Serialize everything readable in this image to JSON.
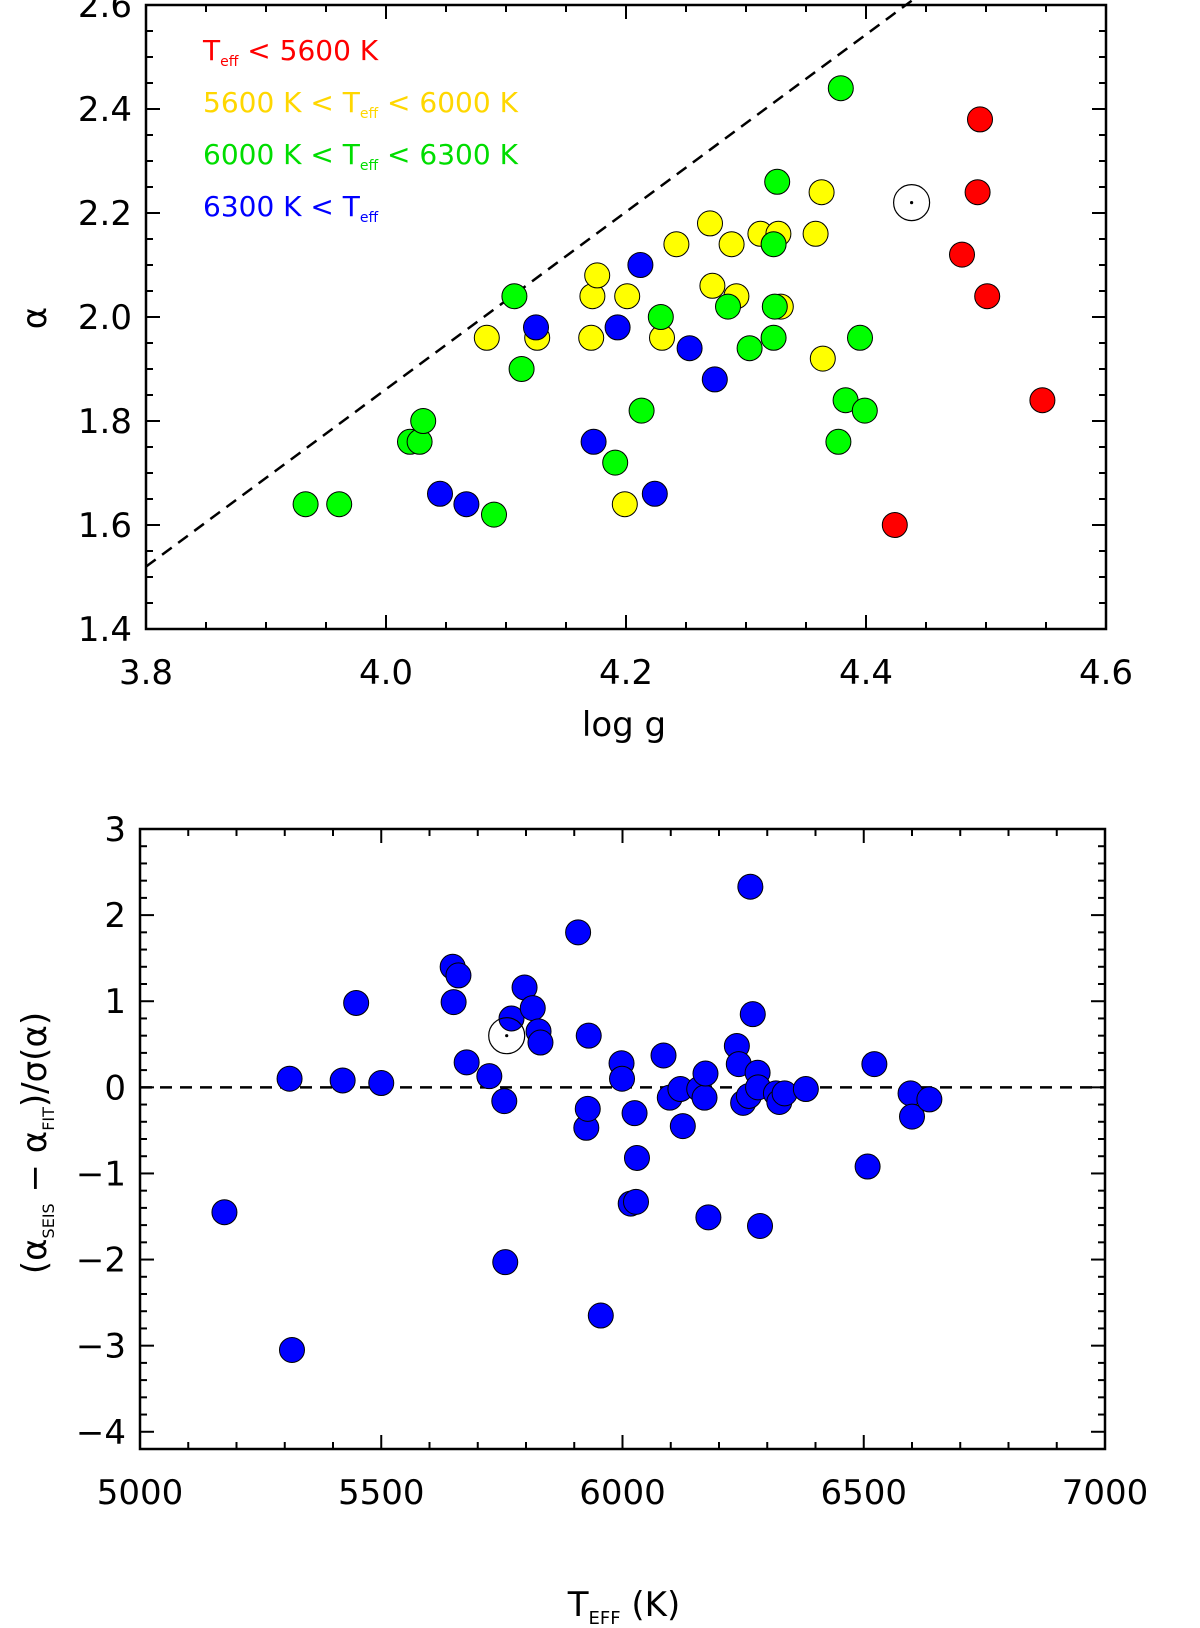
{
  "chart_data": [
    {
      "type": "scatter",
      "xlabel": "log g",
      "ylabel": "α",
      "xlim": [
        3.8,
        4.6
      ],
      "ylim": [
        1.4,
        2.6
      ],
      "xticks": [
        "3.8",
        "4.0",
        "4.2",
        "4.4",
        "4.6"
      ],
      "yticks": [
        "1.4",
        "1.6",
        "1.8",
        "2.0",
        "2.2",
        "2.4",
        "2.6"
      ],
      "legend_position": "top-left",
      "reference_line": {
        "style": "dashed",
        "points": [
          [
            3.8,
            1.52
          ],
          [
            4.445,
            2.62
          ]
        ]
      },
      "series": [
        {
          "name": "Teff < 5600 K",
          "legend": {
            "pre": "T",
            "sub": "eff",
            "post": " < 5600 K"
          },
          "color": "#ff0000",
          "points": [
            [
              4.424,
              1.6
            ],
            [
              4.48,
              2.12
            ],
            [
              4.493,
              2.24
            ],
            [
              4.495,
              2.38
            ],
            [
              4.501,
              2.04
            ],
            [
              4.547,
              1.84
            ]
          ]
        },
        {
          "name": "5600 K < Teff < 6000 K",
          "legend": {
            "pre": "5600 K < T",
            "sub": "eff",
            "post": " < 6000 K"
          },
          "color": "#ffff00",
          "points": [
            [
              4.084,
              1.96
            ],
            [
              4.126,
              1.96
            ],
            [
              4.171,
              1.96
            ],
            [
              4.172,
              2.04
            ],
            [
              4.176,
              2.08
            ],
            [
              4.199,
              1.64
            ],
            [
              4.201,
              2.04
            ],
            [
              4.23,
              1.96
            ],
            [
              4.242,
              2.14
            ],
            [
              4.27,
              2.18
            ],
            [
              4.272,
              2.06
            ],
            [
              4.288,
              2.14
            ],
            [
              4.292,
              2.04
            ],
            [
              4.312,
              2.16
            ],
            [
              4.327,
              2.16
            ],
            [
              4.329,
              2.02
            ],
            [
              4.358,
              2.16
            ],
            [
              4.363,
              2.24
            ],
            [
              4.364,
              1.92
            ]
          ]
        },
        {
          "name": "6000 K < Teff < 6300 K",
          "legend": {
            "pre": "6000 K < T",
            "sub": "eff",
            "post": " < 6300 K"
          },
          "color": "#00ff00",
          "points": [
            [
              3.933,
              1.64
            ],
            [
              3.961,
              1.64
            ],
            [
              4.02,
              1.76
            ],
            [
              4.028,
              1.76
            ],
            [
              4.031,
              1.8
            ],
            [
              4.09,
              1.62
            ],
            [
              4.107,
              2.04
            ],
            [
              4.113,
              1.9
            ],
            [
              4.191,
              1.72
            ],
            [
              4.213,
              1.82
            ],
            [
              4.229,
              2.0
            ],
            [
              4.285,
              2.02
            ],
            [
              4.303,
              1.94
            ],
            [
              4.323,
              1.96
            ],
            [
              4.323,
              2.14
            ],
            [
              4.324,
              2.02
            ],
            [
              4.326,
              2.26
            ],
            [
              4.377,
              1.76
            ],
            [
              4.379,
              2.44
            ],
            [
              4.383,
              1.84
            ],
            [
              4.395,
              1.96
            ],
            [
              4.399,
              1.82
            ]
          ]
        },
        {
          "name": "6300 K < Teff",
          "legend": {
            "pre": "6300 K < T",
            "sub": "eff",
            "post": ""
          },
          "color": "#0000ff",
          "points": [
            [
              4.045,
              1.66
            ],
            [
              4.067,
              1.64
            ],
            [
              4.125,
              1.98
            ],
            [
              4.173,
              1.76
            ],
            [
              4.193,
              1.98
            ],
            [
              4.212,
              2.1
            ],
            [
              4.224,
              1.66
            ],
            [
              4.253,
              1.94
            ],
            [
              4.274,
              1.88
            ]
          ]
        },
        {
          "name": "Sun",
          "color": "none",
          "open_symbol": true,
          "points": [
            [
              4.438,
              2.22
            ]
          ]
        }
      ]
    },
    {
      "type": "scatter",
      "xlabel": "TEFF (K)",
      "xlabel_parts": {
        "pre": "T",
        "sub": "EFF",
        "post": " (K)"
      },
      "ylabel": "(αSEIS − αFIT)/σ(α)",
      "ylabel_parts": {
        "a": "(α",
        "sub1": "SEIS",
        "b": " − α",
        "sub2": "FIT",
        "c": ")/σ(α)"
      },
      "xlim": [
        5000,
        7000
      ],
      "ylim": [
        -4.2,
        3.0
      ],
      "xticks": [
        "5000",
        "5500",
        "6000",
        "6500",
        "7000"
      ],
      "yticks": [
        "−4",
        "−3",
        "−2",
        "−1",
        "0",
        "1",
        "2",
        "3"
      ],
      "reference_line": {
        "style": "dashed",
        "y": 0
      },
      "series": [
        {
          "name": "stars",
          "color": "#0000ff",
          "points": [
            [
              5175,
              -1.45
            ],
            [
              5310,
              0.1
            ],
            [
              5315,
              -3.05
            ],
            [
              5420,
              0.08
            ],
            [
              5448,
              0.98
            ],
            [
              5500,
              0.05
            ],
            [
              5648,
              1.4
            ],
            [
              5650,
              0.99
            ],
            [
              5660,
              1.3
            ],
            [
              5677,
              0.29
            ],
            [
              5724,
              0.13
            ],
            [
              5755,
              -0.16
            ],
            [
              5757,
              -2.03
            ],
            [
              5770,
              0.8
            ],
            [
              5797,
              1.16
            ],
            [
              5814,
              0.92
            ],
            [
              5826,
              0.65
            ],
            [
              5830,
              0.52
            ],
            [
              5908,
              1.8
            ],
            [
              5925,
              -0.47
            ],
            [
              5928,
              -0.25
            ],
            [
              5930,
              0.6
            ],
            [
              5955,
              -2.65
            ],
            [
              5998,
              0.28
            ],
            [
              5999,
              0.1
            ],
            [
              6017,
              -1.35
            ],
            [
              6025,
              -0.3
            ],
            [
              6028,
              -1.33
            ],
            [
              6030,
              -0.82
            ],
            [
              6085,
              0.37
            ],
            [
              6098,
              -0.12
            ],
            [
              6120,
              -0.02
            ],
            [
              6125,
              -0.45
            ],
            [
              6159,
              -0.02
            ],
            [
              6170,
              -0.12
            ],
            [
              6172,
              0.16
            ],
            [
              6178,
              -1.51
            ],
            [
              6237,
              0.48
            ],
            [
              6241,
              0.27
            ],
            [
              6250,
              -0.18
            ],
            [
              6262,
              -0.1
            ],
            [
              6265,
              2.33
            ],
            [
              6270,
              0.85
            ],
            [
              6280,
              0.17
            ],
            [
              6281,
              0.0
            ],
            [
              6285,
              -1.61
            ],
            [
              6318,
              -0.07
            ],
            [
              6325,
              -0.17
            ],
            [
              6336,
              -0.07
            ],
            [
              6380,
              -0.02
            ],
            [
              6508,
              -0.92
            ],
            [
              6522,
              0.27
            ],
            [
              6597,
              -0.07
            ],
            [
              6600,
              -0.34
            ],
            [
              6636,
              -0.14
            ]
          ]
        },
        {
          "name": "Sun",
          "color": "none",
          "open_symbol": true,
          "points": [
            [
              5760,
              0.6
            ]
          ]
        }
      ]
    }
  ]
}
